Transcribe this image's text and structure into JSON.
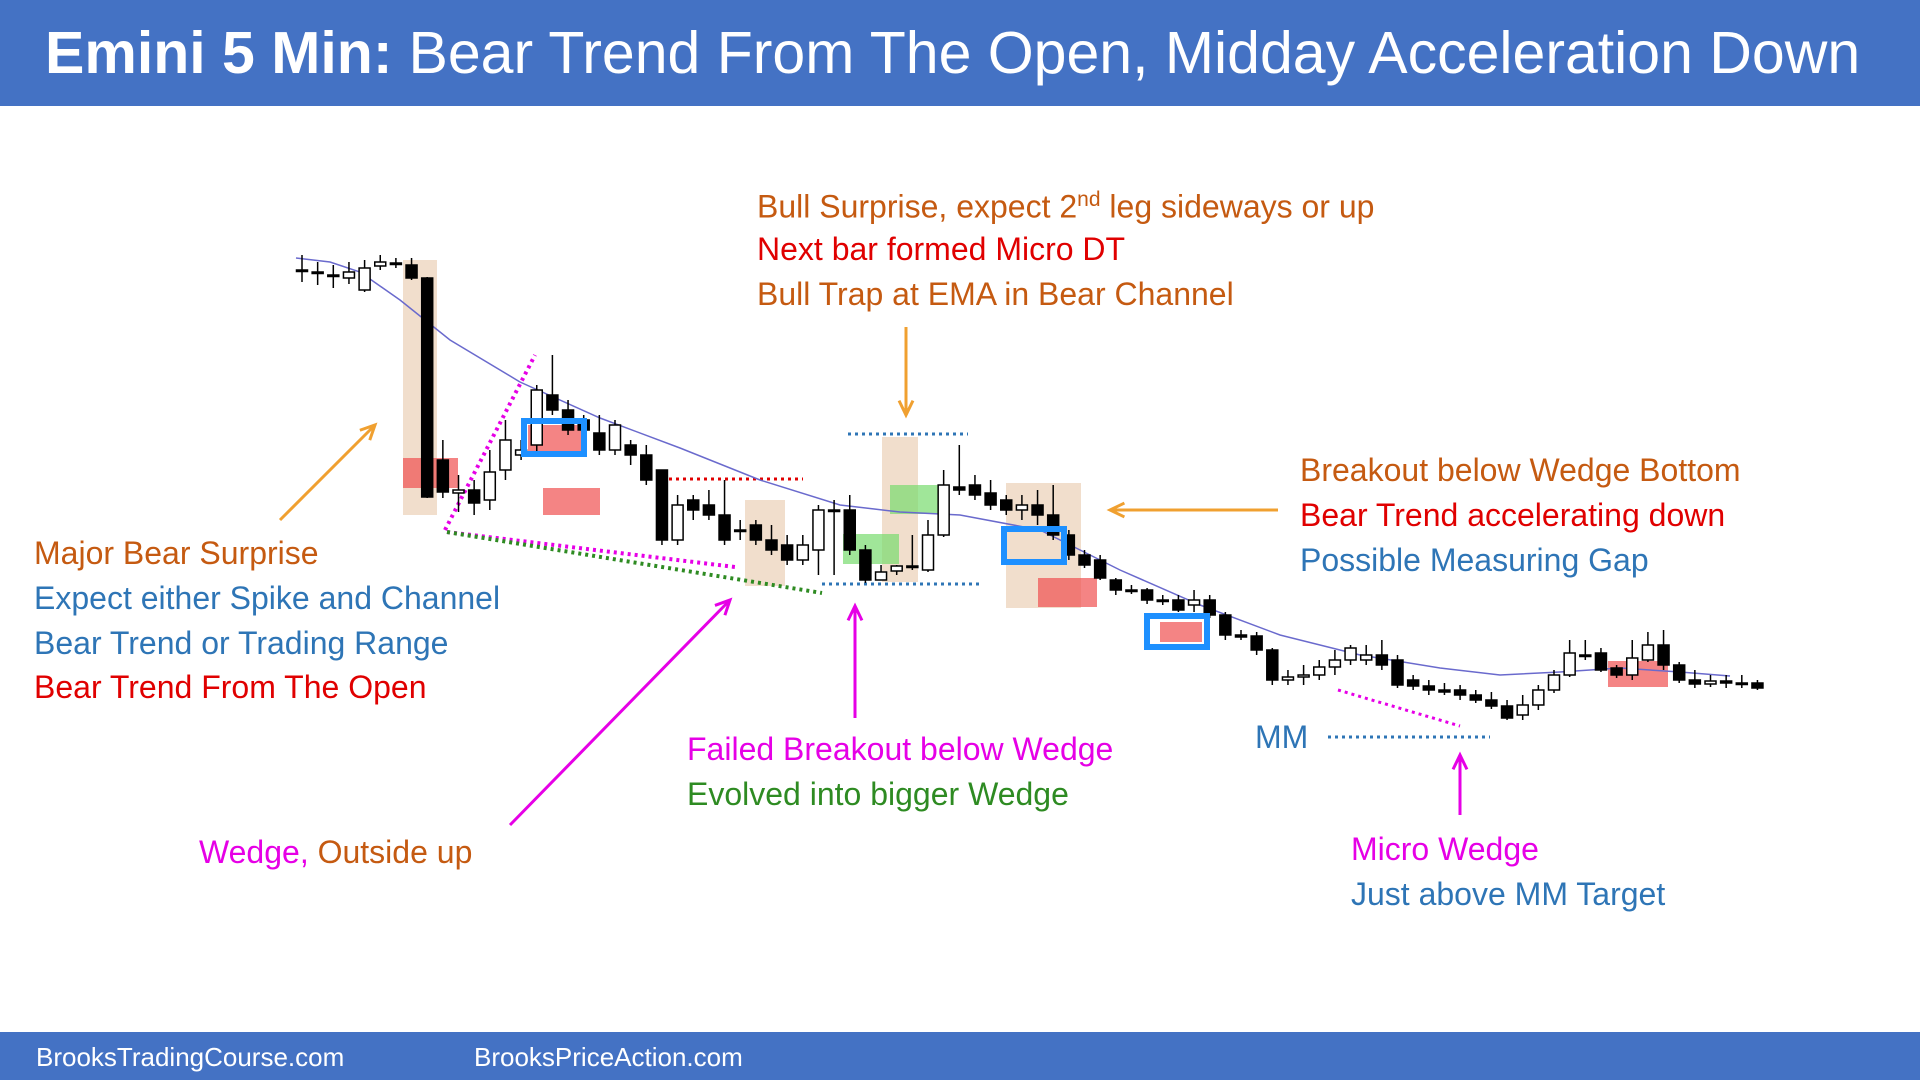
{
  "header": {
    "title_bold": "Emini 5 Min:",
    "title_rest": "Bear Trend From The Open, Midday Acceleration Down"
  },
  "footer": {
    "left": "BrooksTradingCourse.com",
    "right": "BrooksPriceAction.com"
  },
  "colors": {
    "header_bg": "#4472c4",
    "orange": "#c55a11",
    "blue": "#2e75b6",
    "red": "#e00000",
    "magenta": "#e600e6",
    "green": "#2e8b22",
    "ema": "#6a6acd"
  },
  "annotations": {
    "bull_surprise": {
      "line1_a": "Bull Surprise, expect 2",
      "line1_sup": "nd",
      "line1_b": " leg sideways or up",
      "line2": "Next bar formed Micro DT",
      "line3": "Bull Trap at EMA in Bear Channel"
    },
    "breakout": {
      "line1": "Breakout below Wedge Bottom",
      "line2": "Bear Trend accelerating down",
      "line3": "Possible Measuring Gap"
    },
    "major": {
      "line1": "Major Bear Surprise",
      "line2": "Expect either Spike and Channel",
      "line3": "Bear Trend or Trading Range",
      "line4": "Bear Trend From The Open"
    },
    "failed": {
      "line1": "Failed Breakout below Wedge",
      "line2": "Evolved into bigger Wedge"
    },
    "wedge": {
      "part1": "Wedge, ",
      "part2": "Outside up"
    },
    "mm": "MM",
    "micro": {
      "line1": "Micro Wedge",
      "line2": "Just above MM Target"
    }
  },
  "chart_data": {
    "type": "candlestick",
    "title": "Emini 5 Min: Bear Trend From The Open, Midday Acceleration Down",
    "note": "y values are price read in inverted pixel units (no price axis printed)",
    "bars": [
      [
        -270,
        -270,
        -255,
        -282
      ],
      [
        -272,
        -273,
        -262,
        -285
      ],
      [
        -275,
        -276,
        -265,
        -288
      ],
      [
        -278,
        -272,
        -262,
        -284
      ],
      [
        -290,
        -268,
        -260,
        -292
      ],
      [
        -266,
        -262,
        -255,
        -270
      ],
      [
        -263,
        -264,
        -258,
        -268
      ],
      [
        -265,
        -278,
        -258,
        -280
      ],
      [
        -278,
        -497,
        -277,
        -498
      ],
      [
        -460,
        -492,
        -440,
        -498
      ],
      [
        -493,
        -490,
        -475,
        -512
      ],
      [
        -490,
        -503,
        -480,
        -515
      ],
      [
        -500,
        -472,
        -450,
        -510
      ],
      [
        -470,
        -440,
        -420,
        -480
      ],
      [
        -455,
        -450,
        -440,
        -460
      ],
      [
        -445,
        -390,
        -385,
        -455
      ],
      [
        -395,
        -410,
        -355,
        -415
      ],
      [
        -410,
        -430,
        -400,
        -435
      ],
      [
        -420,
        -430,
        -415,
        -440
      ],
      [
        -433,
        -450,
        -415,
        -455
      ],
      [
        -450,
        -425,
        -420,
        -455
      ],
      [
        -445,
        -455,
        -440,
        -465
      ],
      [
        -455,
        -480,
        -445,
        -485
      ],
      [
        -470,
        -540,
        -470,
        -545
      ],
      [
        -540,
        -505,
        -495,
        -545
      ],
      [
        -500,
        -510,
        -495,
        -520
      ],
      [
        -505,
        -515,
        -490,
        -520
      ],
      [
        -515,
        -540,
        -480,
        -545
      ],
      [
        -530,
        -530,
        -520,
        -540
      ],
      [
        -525,
        -540,
        -520,
        -545
      ],
      [
        -540,
        -550,
        -525,
        -555
      ],
      [
        -545,
        -560,
        -535,
        -565
      ],
      [
        -560,
        -545,
        -535,
        -565
      ],
      [
        -550,
        -510,
        -505,
        -575
      ],
      [
        -510,
        -510,
        -500,
        -575
      ],
      [
        -510,
        -550,
        -495,
        -555
      ],
      [
        -550,
        -580,
        -545,
        -583
      ],
      [
        -580,
        -572,
        -565,
        -580
      ],
      [
        -571,
        -566,
        -565,
        -575
      ],
      [
        -566,
        -566,
        -535,
        -570
      ],
      [
        -570,
        -535,
        -520,
        -572
      ],
      [
        -535,
        -485,
        -470,
        -537
      ],
      [
        -487,
        -490,
        -445,
        -495
      ],
      [
        -485,
        -495,
        -475,
        -500
      ],
      [
        -493,
        -505,
        -480,
        -510
      ],
      [
        -500,
        -510,
        -495,
        -515
      ],
      [
        -510,
        -505,
        -495,
        -520
      ],
      [
        -505,
        -515,
        -490,
        -525
      ],
      [
        -515,
        -535,
        -485,
        -540
      ],
      [
        -535,
        -555,
        -530,
        -560
      ],
      [
        -555,
        -565,
        -550,
        -568
      ],
      [
        -560,
        -578,
        -555,
        -580
      ],
      [
        -580,
        -590,
        -578,
        -595
      ],
      [
        -590,
        -590,
        -585,
        -594
      ],
      [
        -590,
        -600,
        -588,
        -604
      ],
      [
        -600,
        -600,
        -595,
        -605
      ],
      [
        -600,
        -610,
        -595,
        -612
      ],
      [
        -605,
        -600,
        -590,
        -612
      ],
      [
        -600,
        -615,
        -595,
        -618
      ],
      [
        -615,
        -635,
        -612,
        -640
      ],
      [
        -635,
        -637,
        -630,
        -640
      ],
      [
        -636,
        -650,
        -632,
        -655
      ],
      [
        -650,
        -680,
        -648,
        -685
      ],
      [
        -680,
        -677,
        -670,
        -685
      ],
      [
        -677,
        -675,
        -665,
        -685
      ],
      [
        -675,
        -667,
        -660,
        -680
      ],
      [
        -667,
        -660,
        -650,
        -675
      ],
      [
        -660,
        -648,
        -645,
        -665
      ],
      [
        -660,
        -655,
        -645,
        -665
      ],
      [
        -655,
        -665,
        -640,
        -670
      ],
      [
        -660,
        -685,
        -655,
        -688
      ],
      [
        -680,
        -686,
        -675,
        -690
      ],
      [
        -686,
        -690,
        -680,
        -695
      ],
      [
        -690,
        -692,
        -683,
        -695
      ],
      [
        -690,
        -695,
        -685,
        -700
      ],
      [
        -695,
        -700,
        -690,
        -703
      ],
      [
        -700,
        -706,
        -692,
        -709
      ],
      [
        -706,
        -718,
        -700,
        -720
      ],
      [
        -715,
        -705,
        -695,
        -720
      ],
      [
        -705,
        -690,
        -685,
        -710
      ],
      [
        -690,
        -675,
        -670,
        -693
      ],
      [
        -675,
        -653,
        -640,
        -677
      ],
      [
        -655,
        -655,
        -640,
        -660
      ],
      [
        -653,
        -670,
        -648,
        -672
      ],
      [
        -668,
        -675,
        -665,
        -678
      ],
      [
        -675,
        -658,
        -640,
        -680
      ],
      [
        -660,
        -645,
        -632,
        -662
      ],
      [
        -645,
        -665,
        -630,
        -670
      ],
      [
        -665,
        -680,
        -662,
        -683
      ],
      [
        -680,
        -684,
        -670,
        -688
      ],
      [
        -684,
        -681,
        -675,
        -687
      ],
      [
        -681,
        -683,
        -675,
        -688
      ],
      [
        -683,
        -683,
        -675,
        -688
      ],
      [
        -683,
        -688,
        -680,
        -690
      ]
    ]
  }
}
